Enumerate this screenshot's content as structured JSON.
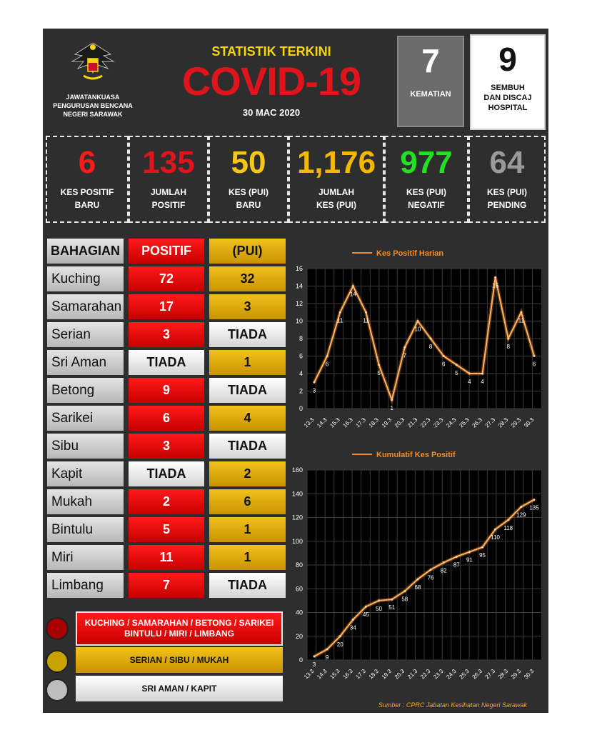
{
  "header": {
    "agency": [
      "JAWATANKUASA",
      "PENGURUSAN BENCANA",
      "NEGERI SARAWAK"
    ],
    "title": "STATISTIK TERKINI",
    "subtitle": "COVID-19",
    "date": "30 MAC 2020",
    "deaths": {
      "value": "7",
      "label": "KEMATIAN"
    },
    "recovered": {
      "value": "9",
      "label_lines": [
        "SEMBUH",
        "DAN DISCAJ",
        "HOSPITAL"
      ]
    }
  },
  "stats": [
    {
      "value": "6",
      "lines": [
        "KES POSITIF",
        "BARU"
      ],
      "color": "#ff1a1a"
    },
    {
      "value": "135",
      "lines": [
        "JUMLAH",
        "POSITIF"
      ],
      "color": "#e1141b"
    },
    {
      "value": "50",
      "lines": [
        "KES (PUI)",
        "BARU"
      ],
      "color": "#f5c518"
    },
    {
      "value": "1,176",
      "lines": [
        "JUMLAH",
        "KES (PUI)"
      ],
      "color": "#f5b800"
    },
    {
      "value": "977",
      "lines": [
        "KES (PUI)",
        "NEGATIF"
      ],
      "color": "#22e022"
    },
    {
      "value": "64",
      "lines": [
        "KES (PUI)",
        "PENDING"
      ],
      "color": "#9a9a9a"
    }
  ],
  "table": {
    "headers": [
      "BAHAGIAN",
      "POSITIF",
      "(PUI)"
    ],
    "rows": [
      {
        "area": "Kuching",
        "positif": "72",
        "pui": "32"
      },
      {
        "area": "Samarahan",
        "positif": "17",
        "pui": "3"
      },
      {
        "area": "Serian",
        "positif": "3",
        "pui": "TIADA"
      },
      {
        "area": "Sri Aman",
        "positif": "TIADA",
        "pui": "1"
      },
      {
        "area": "Betong",
        "positif": "9",
        "pui": "TIADA"
      },
      {
        "area": "Sarikei",
        "positif": "6",
        "pui": "4"
      },
      {
        "area": "Sibu",
        "positif": "3",
        "pui": "TIADA"
      },
      {
        "area": "Kapit",
        "positif": "TIADA",
        "pui": "2"
      },
      {
        "area": "Mukah",
        "positif": "2",
        "pui": "6"
      },
      {
        "area": "Bintulu",
        "positif": "5",
        "pui": "1"
      },
      {
        "area": "Miri",
        "positif": "11",
        "pui": "1"
      },
      {
        "area": "Limbang",
        "positif": "7",
        "pui": "TIADA"
      }
    ]
  },
  "legend": [
    {
      "lines": [
        "KUCHING / SAMARAHAN / BETONG / SARIKEI",
        "BINTULU / MIRI / LIMBANG"
      ],
      "color": "#b30000"
    },
    {
      "lines": [
        "SERIAN / SIBU / MUKAH"
      ],
      "color": "#d4a800"
    },
    {
      "lines": [
        "SRI AMAN / KAPIT"
      ],
      "color": "#c8c8c8"
    }
  ],
  "source": "Sumber : CPRC Jabatan Kesihatan Negeri Sarawak",
  "chart_data": [
    {
      "type": "line",
      "title": "Kes Positif Harian",
      "series": [
        {
          "name": "Kes Positif Harian",
          "values": [
            3,
            6,
            11,
            14,
            11,
            5,
            1,
            7,
            10,
            8,
            6,
            5,
            4,
            4,
            15,
            8,
            11,
            6
          ]
        }
      ],
      "x": [
        "13.3",
        "14.3",
        "15.3",
        "16.3",
        "17.3",
        "18.3",
        "19.3",
        "20.3",
        "21.3",
        "22.3",
        "23.3",
        "24.3",
        "25.3",
        "26.3",
        "27.3",
        "28.3",
        "29.3",
        "30.3"
      ],
      "ylim": [
        0,
        16
      ],
      "yticks": [
        0,
        2,
        4,
        6,
        8,
        10,
        12,
        14,
        16
      ],
      "data_labels": [
        "3",
        "6",
        "11",
        "14",
        "11",
        "5",
        "1",
        "7",
        "10",
        "8",
        "6",
        "5",
        "4",
        "4",
        "15",
        "8",
        "11",
        "6"
      ],
      "grid": true,
      "legend": "top-center",
      "line_color": "#f28c28"
    },
    {
      "type": "line",
      "title": "Kumulatif Kes Positif",
      "series": [
        {
          "name": "Kumulatif Kes Positif",
          "values": [
            3,
            9,
            20,
            34,
            45,
            50,
            51,
            58,
            68,
            76,
            82,
            87,
            91,
            95,
            110,
            118,
            129,
            135
          ]
        }
      ],
      "x": [
        "13.3",
        "14.3",
        "15.3",
        "16.3",
        "17.3",
        "18.3",
        "19.3",
        "20.3",
        "21.3",
        "22.3",
        "23.3",
        "24.3",
        "25.3",
        "26.3",
        "27.3",
        "28.3",
        "29.3",
        "30.3"
      ],
      "ylim": [
        0,
        160
      ],
      "yticks": [
        0,
        20,
        40,
        60,
        80,
        100,
        120,
        140,
        160
      ],
      "data_labels": [
        "3",
        "9",
        "20",
        "34",
        "45",
        "50",
        "51",
        "58",
        "68",
        "76",
        "82",
        "87",
        "91",
        "95",
        "110",
        "118",
        "129",
        "135"
      ],
      "grid": true,
      "legend": "top-center",
      "line_color": "#f28c28"
    }
  ]
}
